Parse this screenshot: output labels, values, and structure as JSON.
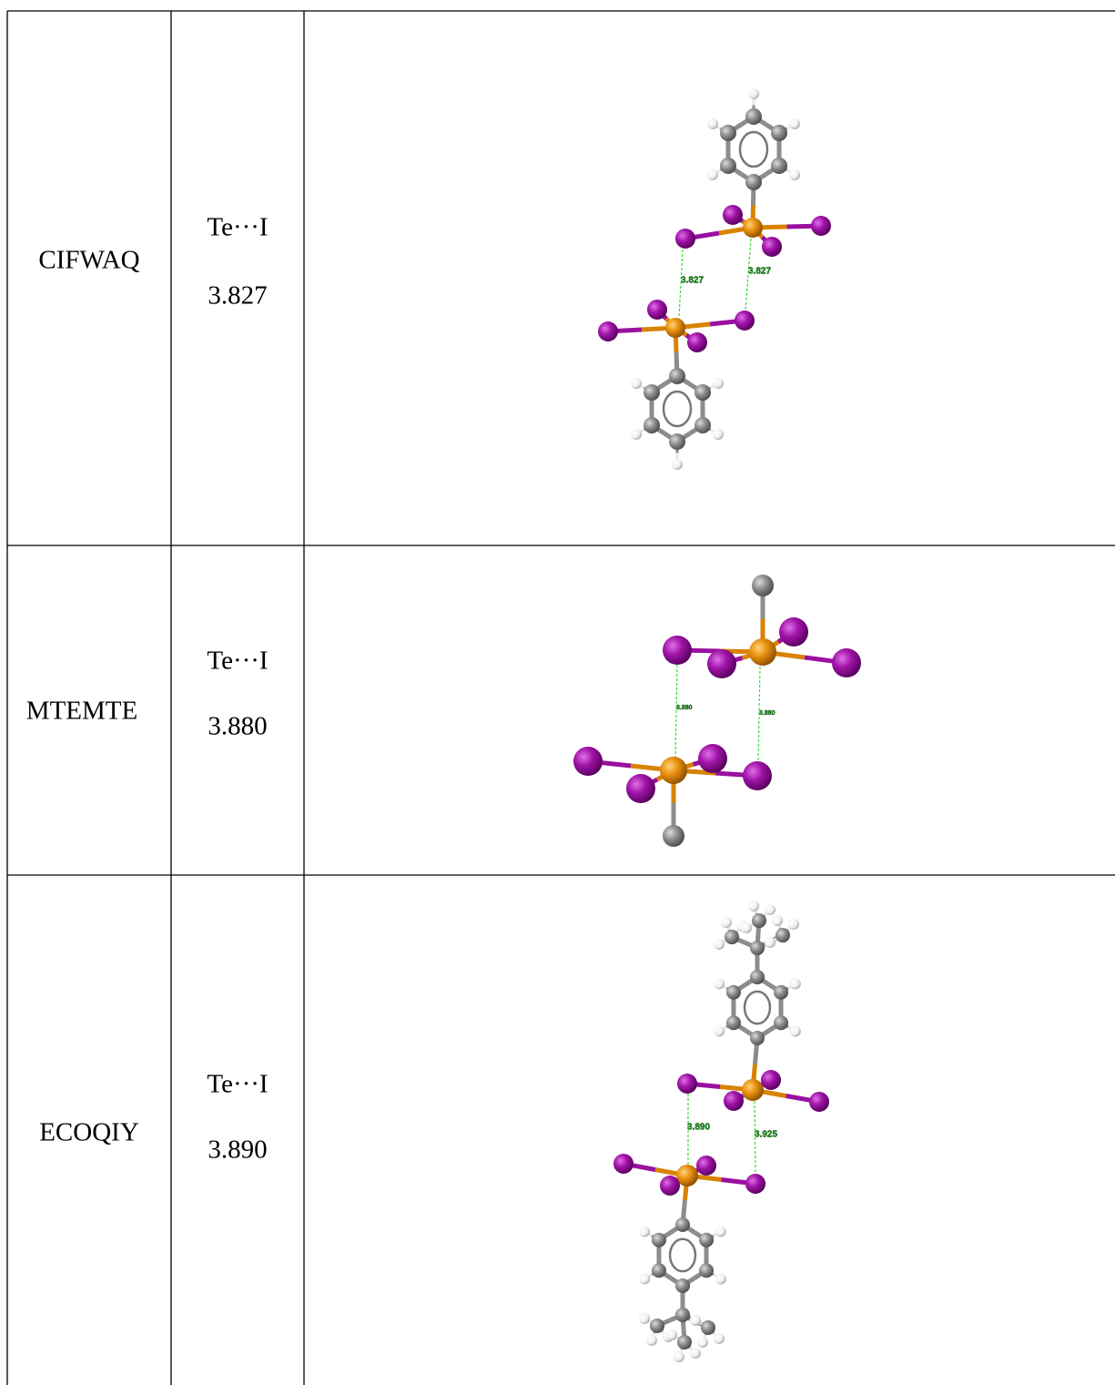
{
  "table": {
    "rows": [
      {
        "code": "CIFWAQ",
        "interaction": "Te···I",
        "distance": "3.827",
        "figure_labels": [
          "3.827",
          "3.827"
        ]
      },
      {
        "code": "MTEMTE",
        "interaction": "Te···I",
        "distance": "3.880",
        "figure_labels": [
          "3.880",
          "3.880"
        ]
      },
      {
        "code": "ECOQIY",
        "interaction": "Te···I",
        "distance": "3.890",
        "figure_labels": [
          "3.890",
          "3.925"
        ]
      }
    ]
  }
}
